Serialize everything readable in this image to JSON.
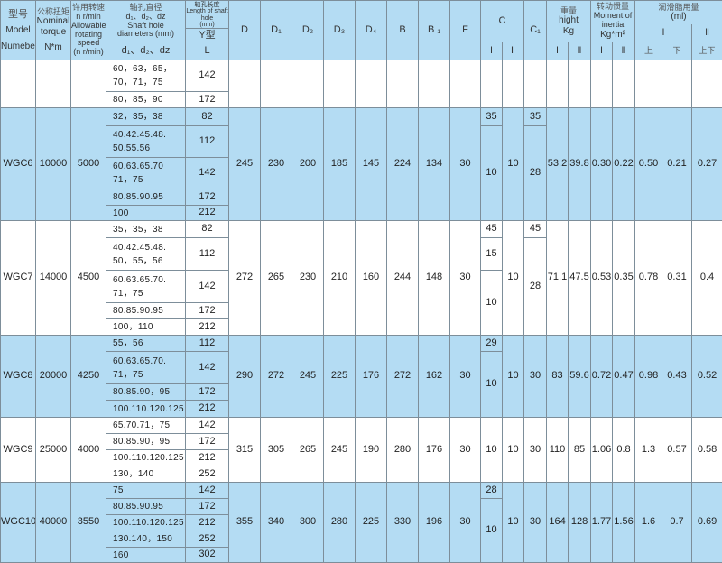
{
  "header": {
    "model": {
      "cn": "型号",
      "en1": "Model",
      "en2": "Numeber"
    },
    "torque": {
      "cn": "公称扭矩",
      "en": "Nominal torque",
      "unit": "N*m"
    },
    "speed": {
      "cn": "许用转速",
      "unit1": "n r/min",
      "en": "Allowable rotating speed",
      "unit2": "(n r/min)"
    },
    "bore": {
      "cn": "轴孔直径",
      "symbols": "d₁、d₂、dz",
      "en": "Shaft hole diameters",
      "unit": "(mm)",
      "sub": "d₁、d₂、dz"
    },
    "length": {
      "cn": "轴孔长度",
      "en": "Length of shaft hole",
      "unit": "(mm)",
      "type": "Y型",
      "sub": "L"
    },
    "D": "D",
    "D1": "D₁",
    "D2": "D₂",
    "D3": "D₃",
    "D4": "D₄",
    "B": "B",
    "B1": "B ₁",
    "F": "F",
    "C": "C",
    "C_I": "Ⅰ",
    "C_II": "Ⅱ",
    "C1": "C₁",
    "weight": {
      "cn": "重量",
      "en": "hight",
      "unit": "Kg",
      "I": "Ⅰ",
      "II": "Ⅱ"
    },
    "inertia": {
      "cn": "转动惯量",
      "en": "Moment of inertia",
      "unit": "Kg*m²",
      "I": "Ⅰ",
      "II": "Ⅱ"
    },
    "lube": {
      "cn": "润滑脂用量",
      "unit": "(ml)",
      "I": "Ⅰ",
      "II": "Ⅱ",
      "upper": "上",
      "lower": "下",
      "both": "上下"
    }
  },
  "colors": {
    "blue": "#b4dcf3",
    "white": "#ffffff",
    "border": "#7d8e9a"
  },
  "groups": [
    {
      "model": "",
      "torque": "",
      "speed": "",
      "bg": "white",
      "bores": [
        {
          "d": "60，63，65，\n70，71，75",
          "L": "142"
        },
        {
          "d": "80，85，90",
          "L": "172"
        }
      ],
      "D": "",
      "D1": "",
      "D2": "",
      "D3": "",
      "D4": "",
      "B": "",
      "B1": "",
      "F": "",
      "c_i": [
        {
          "v": "",
          "rows": 2
        }
      ],
      "c_ii": "",
      "c1": [
        {
          "v": "",
          "rows": 2
        }
      ],
      "weight_i": "",
      "weight_ii": "",
      "inertia_i": "",
      "inertia_ii": "",
      "lube_upper": "",
      "lube_lower": "",
      "lube_both": ""
    },
    {
      "model": "WGC6",
      "torque": "10000",
      "speed": "5000",
      "bg": "blue",
      "bores": [
        {
          "d": "32，35，38",
          "L": "82"
        },
        {
          "d": "40.42.45.48.\n50.55.56",
          "L": "112"
        },
        {
          "d": "60.63.65.70\n71，75",
          "L": "142"
        },
        {
          "d": "80.85.90.95",
          "L": "172"
        },
        {
          "d": "100",
          "L": "212"
        }
      ],
      "D": "245",
      "D1": "230",
      "D2": "200",
      "D3": "185",
      "D4": "145",
      "B": "224",
      "B1": "134",
      "F": "30",
      "c_i": [
        {
          "v": "35",
          "rows": 1
        },
        {
          "v": "10",
          "rows": 4
        }
      ],
      "c_ii": "10",
      "c1": [
        {
          "v": "35",
          "rows": 1
        },
        {
          "v": "28",
          "rows": 4
        }
      ],
      "weight_i": "53.2",
      "weight_ii": "39.8",
      "inertia_i": "0.30",
      "inertia_ii": "0.22",
      "lube_upper": "0.50",
      "lube_lower": "0.21",
      "lube_both": "0.27"
    },
    {
      "model": "WGC7",
      "torque": "14000",
      "speed": "4500",
      "bg": "white",
      "bores": [
        {
          "d": "35，35，38",
          "L": "82"
        },
        {
          "d": "40.42.45.48.\n50，55，56",
          "L": "112"
        },
        {
          "d": "60.63.65.70.\n71，75",
          "L": "142"
        },
        {
          "d": "80.85.90.95",
          "L": "172"
        },
        {
          "d": "100，110",
          "L": "212"
        }
      ],
      "D": "272",
      "D1": "265",
      "D2": "230",
      "D3": "210",
      "D4": "160",
      "B": "244",
      "B1": "148",
      "F": "30",
      "c_i": [
        {
          "v": "45",
          "rows": 1
        },
        {
          "v": "15",
          "rows": 1
        },
        {
          "v": "10",
          "rows": 3
        }
      ],
      "c_ii": "10",
      "c1": [
        {
          "v": "45",
          "rows": 1
        },
        {
          "v": "28",
          "rows": 4
        }
      ],
      "weight_i": "71.1",
      "weight_ii": "47.5",
      "inertia_i": "0.53",
      "inertia_ii": "0.35",
      "lube_upper": "0.78",
      "lube_lower": "0.31",
      "lube_both": "0.4"
    },
    {
      "model": "WGC8",
      "torque": "20000",
      "speed": "4250",
      "bg": "blue",
      "bores": [
        {
          "d": "55，56",
          "L": "112"
        },
        {
          "d": "60.63.65.70.\n71，75",
          "L": "142"
        },
        {
          "d": "80.85.90，95",
          "L": "172"
        },
        {
          "d": "100.110.120.125",
          "L": "212"
        }
      ],
      "D": "290",
      "D1": "272",
      "D2": "245",
      "D3": "225",
      "D4": "176",
      "B": "272",
      "B1": "162",
      "F": "30",
      "c_i": [
        {
          "v": "29",
          "rows": 1
        },
        {
          "v": "10",
          "rows": 3
        }
      ],
      "c_ii": "10",
      "c1": [
        {
          "v": "30",
          "rows": 4
        }
      ],
      "weight_i": "83",
      "weight_ii": "59.6",
      "inertia_i": "0.72",
      "inertia_ii": "0.47",
      "lube_upper": "0.98",
      "lube_lower": "0.43",
      "lube_both": "0.52"
    },
    {
      "model": "WGC9",
      "torque": "25000",
      "speed": "4000",
      "bg": "white",
      "bores": [
        {
          "d": "65.70.71，75",
          "L": "142"
        },
        {
          "d": "80.85.90，95",
          "L": "172"
        },
        {
          "d": "100.110.120.125",
          "L": "212"
        },
        {
          "d": "130，140",
          "L": "252"
        }
      ],
      "D": "315",
      "D1": "305",
      "D2": "265",
      "D3": "245",
      "D4": "190",
      "B": "280",
      "B1": "176",
      "F": "30",
      "c_i": [
        {
          "v": "10",
          "rows": 4
        }
      ],
      "c_ii": "10",
      "c1": [
        {
          "v": "30",
          "rows": 4
        }
      ],
      "weight_i": "110",
      "weight_ii": "85",
      "inertia_i": "1.06",
      "inertia_ii": "0.8",
      "lube_upper": "1.3",
      "lube_lower": "0.57",
      "lube_both": "0.58"
    },
    {
      "model": "WGC10",
      "torque": "40000",
      "speed": "3550",
      "bg": "blue",
      "bores": [
        {
          "d": "75",
          "L": "142"
        },
        {
          "d": "80.85.90.95",
          "L": "172"
        },
        {
          "d": "100.110.120.125",
          "L": "212"
        },
        {
          "d": "130.140，150",
          "L": "252"
        },
        {
          "d": "160",
          "L": "302"
        }
      ],
      "D": "355",
      "D1": "340",
      "D2": "300",
      "D3": "280",
      "D4": "225",
      "B": "330",
      "B1": "196",
      "F": "30",
      "c_i": [
        {
          "v": "28",
          "rows": 1
        },
        {
          "v": "10",
          "rows": 4
        }
      ],
      "c_ii": "10",
      "c1": [
        {
          "v": "30",
          "rows": 5
        }
      ],
      "weight_i": "164",
      "weight_ii": "128",
      "inertia_i": "1.77",
      "inertia_ii": "1.56",
      "lube_upper": "1.6",
      "lube_lower": "0.7",
      "lube_both": "0.69"
    }
  ]
}
